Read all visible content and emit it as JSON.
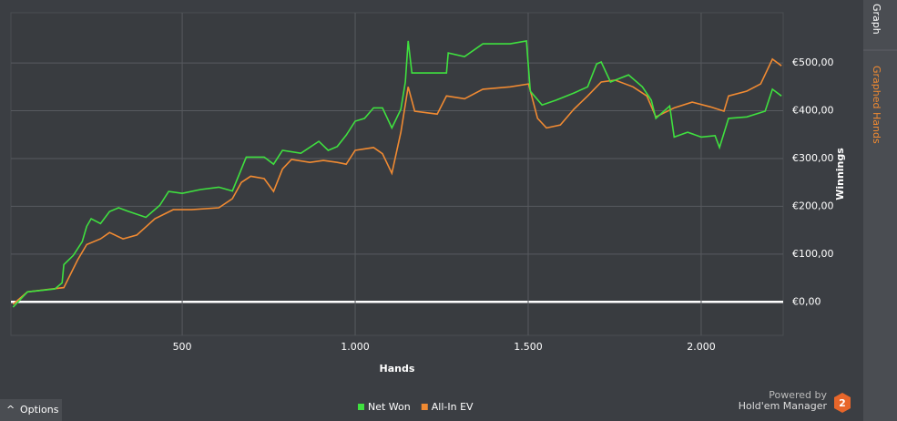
{
  "chart_data": {
    "type": "line",
    "xlabel": "Hands",
    "ylabel": "Winnings",
    "xlim": [
      5,
      2237
    ],
    "ylim": [
      -70,
      605
    ],
    "xticks": [
      500,
      {
        "value": 1000,
        "label": "1.000"
      },
      {
        "value": 1500,
        "label": "1.500"
      },
      {
        "value": 2000,
        "label": "2.000"
      }
    ],
    "yticks": [
      {
        "value": 0,
        "label": "€0,00"
      },
      {
        "value": 100,
        "label": "€100,00"
      },
      {
        "value": 200,
        "label": "€200,00"
      },
      {
        "value": 300,
        "label": "€300,00"
      },
      {
        "value": 400,
        "label": "€400,00"
      },
      {
        "value": 500,
        "label": "€500,00"
      }
    ],
    "grid": true,
    "legend": "bottom",
    "series": [
      {
        "name": "Net Won",
        "color": "#3fe03f",
        "x": [
          11,
          53,
          132,
          153,
          158,
          185,
          211,
          224,
          237,
          264,
          290,
          316,
          342,
          395,
          435,
          461,
          500,
          553,
          606,
          645,
          685,
          737,
          764,
          790,
          843,
          895,
          922,
          948,
          974,
          1000,
          1027,
          1053,
          1079,
          1106,
          1132,
          1145,
          1153,
          1164,
          1211,
          1264,
          1269,
          1316,
          1369,
          1448,
          1495,
          1506,
          1540,
          1580,
          1632,
          1672,
          1698,
          1711,
          1738,
          1790,
          1830,
          1856,
          1869,
          1909,
          1922,
          1961,
          2000,
          2040,
          2053,
          2079,
          2132,
          2185,
          2206,
          2232
        ],
        "values": [
          -11,
          21,
          27,
          40,
          78,
          97,
          126,
          158,
          174,
          164,
          189,
          197,
          190,
          177,
          202,
          231,
          227,
          235,
          240,
          232,
          303,
          303,
          288,
          317,
          311,
          336,
          317,
          325,
          349,
          378,
          384,
          406,
          406,
          364,
          403,
          460,
          546,
          479,
          479,
          479,
          521,
          513,
          540,
          540,
          546,
          441,
          412,
          422,
          437,
          450,
          498,
          502,
          460,
          475,
          450,
          422,
          384,
          410,
          345,
          355,
          345,
          348,
          323,
          384,
          387,
          399,
          445,
          431
        ]
      },
      {
        "name": "All-In EV",
        "color": "#f08a32",
        "x": [
          11,
          53,
          158,
          198,
          224,
          264,
          290,
          329,
          369,
          421,
          474,
          527,
          606,
          645,
          671,
          698,
          737,
          764,
          790,
          816,
          869,
          908,
          948,
          974,
          1000,
          1053,
          1079,
          1106,
          1132,
          1153,
          1172,
          1237,
          1264,
          1316,
          1369,
          1448,
          1501,
          1527,
          1553,
          1593,
          1632,
          1672,
          1711,
          1751,
          1803,
          1843,
          1869,
          1922,
          1974,
          2027,
          2066,
          2079,
          2132,
          2172,
          2206,
          2232
        ],
        "values": [
          -5,
          21,
          30,
          88,
          120,
          132,
          145,
          132,
          140,
          174,
          193,
          193,
          197,
          216,
          250,
          263,
          258,
          231,
          278,
          298,
          292,
          296,
          292,
          288,
          317,
          323,
          310,
          269,
          355,
          450,
          399,
          393,
          431,
          425,
          445,
          450,
          456,
          384,
          364,
          370,
          403,
          431,
          460,
          464,
          450,
          431,
          387,
          406,
          418,
          408,
          399,
          431,
          441,
          456,
          508,
          494
        ]
      }
    ]
  },
  "sidebar": {
    "tabs": [
      "Graph",
      "Graphed Hands"
    ]
  },
  "options_button": "Options",
  "branding": {
    "powered_by": "Powered by",
    "product": "Hold'em Manager",
    "logo": "2"
  }
}
